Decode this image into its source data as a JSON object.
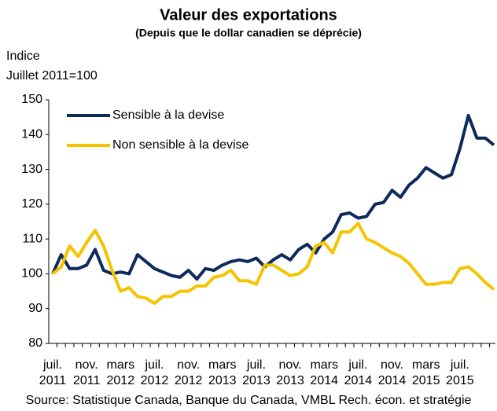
{
  "chart_data": {
    "type": "line",
    "title": "Valeur des exportations",
    "subtitle": "(Depuis que le dollar canadien se déprécie)",
    "y_axis_label": [
      "Indice",
      "Juillet 2011=100"
    ],
    "source": "Source: Statistique Canada, Banque du Canada, VMBL Rech. écon. et stratégie",
    "categories": [
      "juil. 2011",
      null,
      null,
      null,
      "nov. 2011",
      null,
      null,
      null,
      "mars 2012",
      null,
      null,
      null,
      "juil. 2012",
      null,
      null,
      null,
      "nov. 2012",
      null,
      null,
      null,
      "mars 2013",
      null,
      null,
      null,
      "juil. 2013",
      null,
      null,
      null,
      "nov. 2013",
      null,
      null,
      null,
      "mars 2014",
      null,
      null,
      null,
      "juil. 2014",
      null,
      null,
      null,
      "nov. 2014",
      null,
      null,
      null,
      "mars 2015",
      null,
      null,
      null,
      "juil. 2015",
      null,
      null,
      null,
      null
    ],
    "series": [
      {
        "name": "Sensible à la devise",
        "color": "#0d2a5c",
        "values": [
          100,
          105.5,
          101.5,
          101.5,
          102.5,
          107,
          101,
          100,
          100.5,
          100,
          105.5,
          103.5,
          101.5,
          100.5,
          99.5,
          99,
          101,
          98.5,
          101.5,
          101,
          102.5,
          103.5,
          104,
          103.5,
          104.5,
          102,
          104,
          105.5,
          104,
          107,
          108.5,
          106,
          110,
          112,
          117,
          117.5,
          116,
          116.5,
          120,
          120.5,
          124,
          122,
          125.5,
          127.5,
          130.5,
          129,
          127.5,
          128.5,
          136,
          145.5,
          139,
          139,
          137
        ]
      },
      {
        "name": "Non sensible à la devise",
        "color": "#f5c400",
        "values": [
          100,
          102,
          108,
          105,
          109,
          112.5,
          108,
          101,
          95,
          96,
          93.5,
          93,
          91.5,
          93.5,
          93.5,
          95,
          95,
          96.5,
          96.5,
          99,
          99.5,
          101,
          98,
          98,
          97,
          102.5,
          102.5,
          101,
          99.5,
          100,
          102,
          108,
          109,
          106,
          112,
          112,
          114.5,
          110,
          109,
          107.5,
          106,
          105,
          103,
          100,
          97,
          97,
          97.5,
          97.5,
          101.5,
          102,
          100,
          97.5,
          95.5
        ]
      }
    ],
    "ylim": [
      80,
      150
    ],
    "yticks": [
      80,
      90,
      100,
      110,
      120,
      130,
      140,
      150
    ],
    "grid": false,
    "legend": "upper left"
  }
}
